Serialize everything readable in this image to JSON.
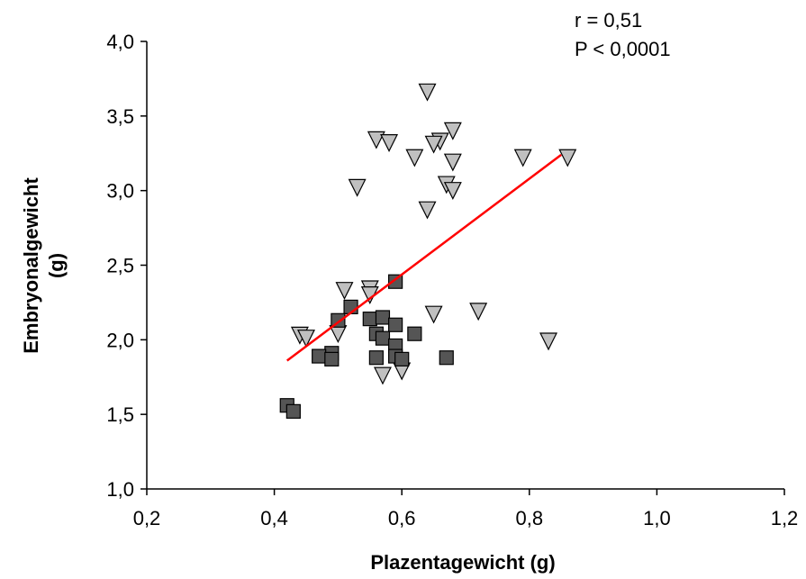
{
  "chart_data": {
    "type": "scatter",
    "xlabel": "Plazentagewicht (g)",
    "ylabel_line1": "Embryonalgewicht",
    "ylabel_line2": "(g)",
    "xlim": [
      0.2,
      1.2
    ],
    "ylim": [
      1.0,
      4.0
    ],
    "x_ticks": [
      0.2,
      0.4,
      0.6,
      0.8,
      1.0,
      1.2
    ],
    "x_tick_labels": [
      "0,2",
      "0,4",
      "0,6",
      "0,8",
      "1,0",
      "1,2"
    ],
    "y_ticks": [
      1.0,
      1.5,
      2.0,
      2.5,
      3.0,
      3.5,
      4.0
    ],
    "y_tick_labels": [
      "1,0",
      "1,5",
      "2,0",
      "2,5",
      "3,0",
      "3,5",
      "4,0"
    ],
    "grid": false,
    "annotations": [
      "r = 0,51",
      "P < 0,0001"
    ],
    "series": [
      {
        "marker": "triangle-down",
        "color": "#c0c0c0",
        "x": [
          0.64,
          0.68,
          0.56,
          0.58,
          0.66,
          0.65,
          0.62,
          0.68,
          0.79,
          0.86,
          0.53,
          0.67,
          0.68,
          0.64,
          0.51,
          0.55,
          0.55,
          0.65,
          0.72,
          0.44,
          0.45,
          0.5,
          0.83,
          0.57,
          0.6
        ],
        "y": [
          3.66,
          3.4,
          3.34,
          3.32,
          3.33,
          3.31,
          3.22,
          3.19,
          3.22,
          3.22,
          3.02,
          3.04,
          3.0,
          2.87,
          2.33,
          2.34,
          2.3,
          2.17,
          2.19,
          2.03,
          2.01,
          2.04,
          1.99,
          1.76,
          1.79
        ]
      },
      {
        "marker": "square",
        "color": "#555555",
        "x": [
          0.59,
          0.52,
          0.5,
          0.55,
          0.57,
          0.59,
          0.56,
          0.57,
          0.62,
          0.59,
          0.49,
          0.47,
          0.49,
          0.56,
          0.59,
          0.6,
          0.67,
          0.42,
          0.43
        ],
        "y": [
          2.39,
          2.22,
          2.13,
          2.14,
          2.15,
          2.1,
          2.04,
          2.01,
          2.04,
          1.96,
          1.91,
          1.89,
          1.87,
          1.88,
          1.89,
          1.87,
          1.88,
          1.56,
          1.52
        ]
      }
    ],
    "trendline": {
      "color": "#ff0000",
      "x": [
        0.42,
        0.85
      ],
      "y": [
        1.86,
        3.24
      ]
    }
  }
}
